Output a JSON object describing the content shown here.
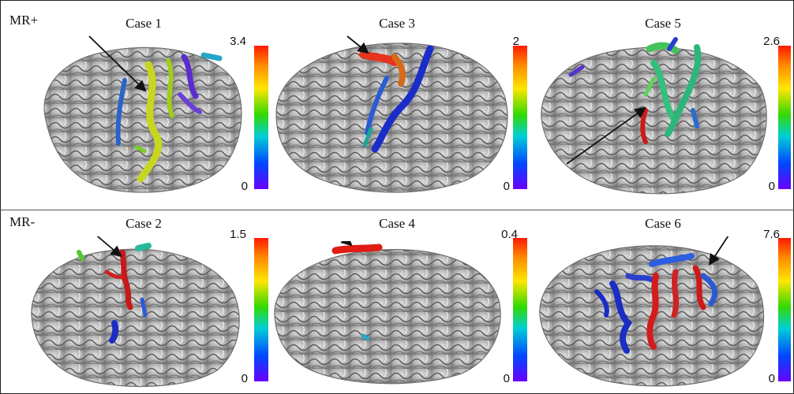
{
  "rows": [
    {
      "label": "MR+"
    },
    {
      "label": "MR-"
    }
  ],
  "panels": [
    {
      "title": "Case 1",
      "cbar_max": "3.4",
      "cbar_min": "0"
    },
    {
      "title": "Case 3",
      "cbar_max": "2",
      "cbar_min": "0"
    },
    {
      "title": "Case 5",
      "cbar_max": "2.6",
      "cbar_min": "0"
    },
    {
      "title": "Case 2",
      "cbar_max": "1.5",
      "cbar_min": "0"
    },
    {
      "title": "Case 4",
      "cbar_max": "0.4",
      "cbar_min": "0"
    },
    {
      "title": "Case 6",
      "cbar_max": "7.6",
      "cbar_min": "0"
    }
  ],
  "colors": {
    "colorbar_top": "#ff1a00",
    "colorbar_bottom": "#6a00ff",
    "cortex": "#a9a9a9",
    "arrow": "#111111"
  }
}
